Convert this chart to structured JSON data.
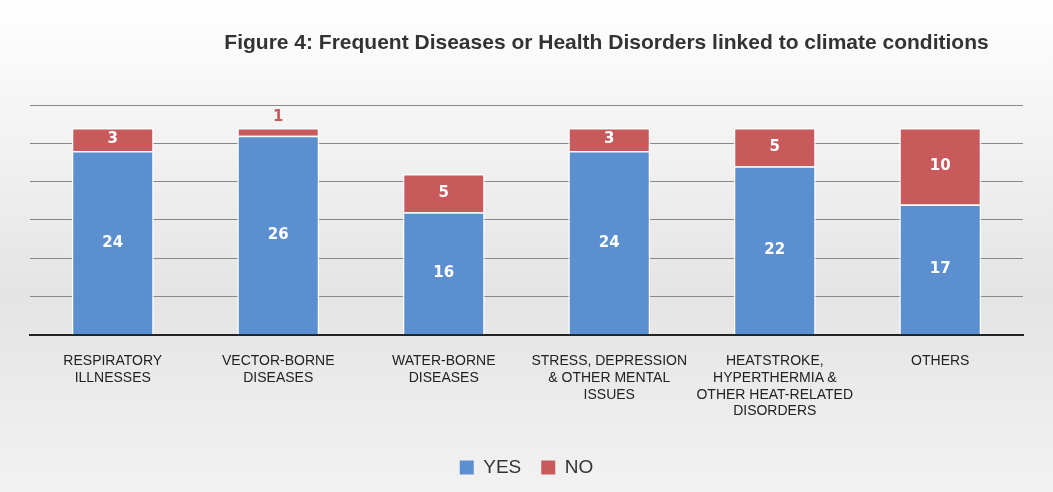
{
  "chart_data": {
    "type": "bar",
    "title": "Figure 4: Frequent Diseases or Health Disorders linked to climate conditions",
    "categories": [
      "RESPIRATORY ILLNESSES",
      "VECTOR-BORNE DISEASES",
      "WATER-BORNE DISEASES",
      "STRESS, DEPRESSION & OTHER MENTAL ISSUES",
      "HEATSTROKE, HYPERTHERMIA & OTHER HEAT-RELATED DISORDERS",
      "OTHERS"
    ],
    "series": [
      {
        "name": "YES",
        "color": "#5b8fd0",
        "values": [
          24,
          26,
          16,
          24,
          22,
          17
        ]
      },
      {
        "name": "NO",
        "color": "#c95a5c",
        "values": [
          3,
          1,
          5,
          3,
          5,
          10
        ]
      }
    ],
    "stacked": true,
    "ylim": [
      0,
      30
    ],
    "yticks": [
      {
        "value": 0,
        "label": null
      },
      {
        "value": 5,
        "label": null
      },
      {
        "value": 10,
        "label": null
      },
      {
        "value": 15,
        "label": null
      },
      {
        "value": 20,
        "label": null
      },
      {
        "value": 25,
        "label": null
      },
      {
        "value": 30,
        "label": null
      }
    ],
    "tick_labels": "x",
    "grid": "y",
    "legend": "bottom",
    "data_labels": true
  }
}
